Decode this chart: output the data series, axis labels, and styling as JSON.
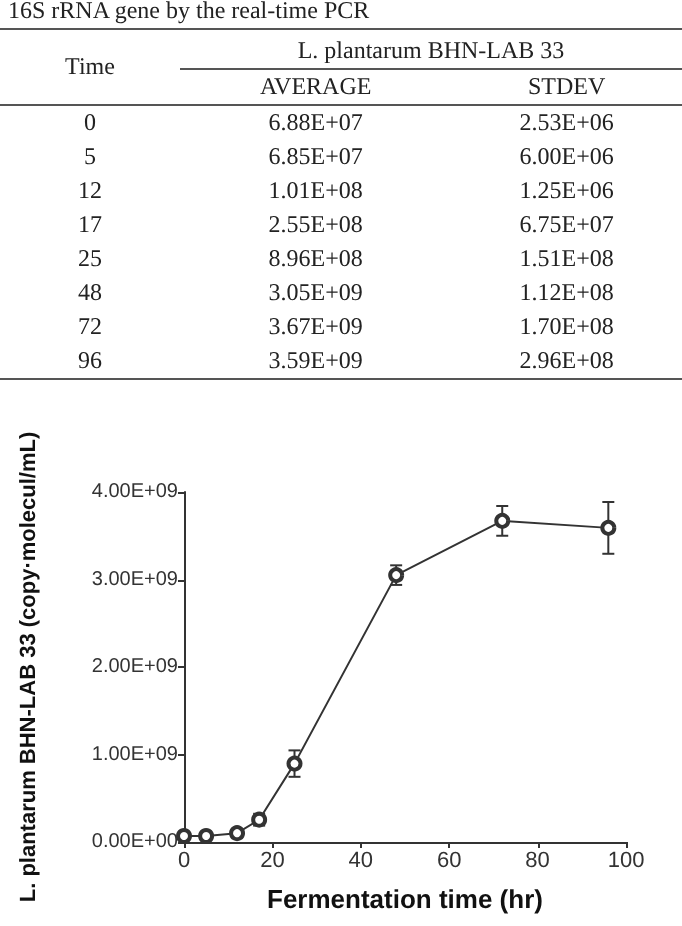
{
  "chart_data": [
    {
      "type": "other",
      "title": "16S rRNA gene by the real-time PCR",
      "annotations": [
        "Time",
        "L. plantarum BHN-LAB 33",
        "AVERAGE",
        "STDEV",
        "0",
        "6.88E+07",
        "2.53E+06",
        "5",
        "6.85E+07",
        "6.00E+06",
        "12",
        "1.01E+08",
        "1.25E+06",
        "17",
        "2.55E+08",
        "6.75E+07",
        "25",
        "8.96E+08",
        "1.51E+08",
        "48",
        "3.05E+09",
        "1.12E+08",
        "72",
        "3.67E+09",
        "1.70E+08",
        "96",
        "3.59E+09",
        "2.96E+08"
      ]
    },
    {
      "type": "line",
      "xlabel": "Fermentation time (hr)",
      "ylabel": "L. plantarum BHN-LAB 33 (copy·molecul/mL)",
      "x": [
        0,
        5,
        12,
        17,
        25,
        48,
        72,
        96
      ],
      "values": [
        68800000.0,
        68500000.0,
        101000000.0,
        255000000.0,
        896000000.0,
        3050000000.0,
        3670000000.0,
        3590000000.0
      ],
      "errors": [
        2530000.0,
        6000000.0,
        1250000.0,
        67500000.0,
        151000000.0,
        112000000.0,
        170000000.0,
        296000000.0
      ],
      "color": "#333333",
      "marker": "circle",
      "line_style": "solid",
      "grid": false,
      "xlim": [
        0,
        100
      ],
      "xticks": [
        0,
        20,
        40,
        60,
        80,
        100
      ],
      "ylim": [
        0,
        4000000000.0
      ],
      "yticks": [
        {
          "value": 0,
          "label": "0.00E+00"
        },
        {
          "value": 1000000000.0,
          "label": "1.00E+09"
        },
        {
          "value": 2000000000.0,
          "label": "2.00E+09"
        },
        {
          "value": 3000000000.0,
          "label": "3.00E+09"
        },
        {
          "value": 4000000000.0,
          "label": "4.00E+09"
        }
      ]
    }
  ]
}
